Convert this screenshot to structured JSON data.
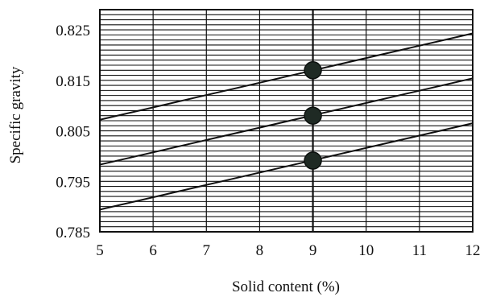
{
  "chart_data": {
    "type": "line",
    "title": "",
    "xlabel": "Solid content (%)",
    "ylabel": "Specific gravity",
    "xlim": [
      5,
      12
    ],
    "ylim": [
      0.785,
      0.829
    ],
    "x_ticks": [
      5,
      6,
      7,
      8,
      9,
      10,
      11,
      12
    ],
    "x_tick_labels": [
      "5",
      "6",
      "7",
      "8",
      "9",
      "10",
      "11",
      "12"
    ],
    "y_ticks": [
      0.785,
      0.795,
      0.805,
      0.815,
      0.825
    ],
    "y_tick_labels": [
      "0.785",
      "0.795",
      "0.805",
      "0.815",
      "0.825"
    ],
    "grid": true,
    "minor_y_step": 0.001,
    "series": [
      {
        "x": [
          5,
          12
        ],
        "values": [
          0.8072,
          0.8243
        ]
      },
      {
        "x": [
          5,
          12
        ],
        "values": [
          0.7983,
          0.8154
        ]
      },
      {
        "x": [
          5,
          12
        ],
        "values": [
          0.7894,
          0.8065
        ]
      }
    ],
    "points": [
      {
        "x": 9,
        "y": 0.817
      },
      {
        "x": 9,
        "y": 0.808
      },
      {
        "x": 9,
        "y": 0.7991
      }
    ],
    "vertical_marker_x": 9,
    "colors": {
      "grid": "#111111",
      "line": "#111111",
      "point": "#1f2a24"
    }
  }
}
